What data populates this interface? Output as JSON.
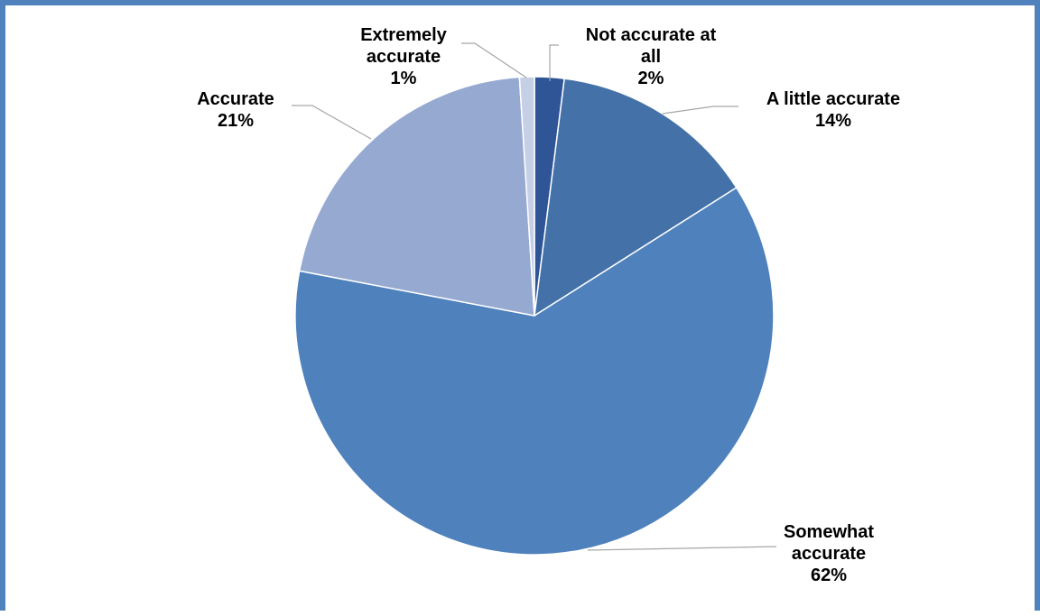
{
  "chart_data": {
    "type": "pie",
    "categories": [
      "Not accurate at all",
      "A little accurate",
      "Somewhat accurate",
      "Accurate",
      "Extremely accurate"
    ],
    "values": [
      2,
      14,
      62,
      21,
      1
    ],
    "value_labels": [
      "2%",
      "14%",
      "62%",
      "21%",
      "1%"
    ],
    "colors": [
      "#2f5597",
      "#4472a8",
      "#4f81bd",
      "#95a9d1",
      "#c5d0e6"
    ],
    "start_at_top": true,
    "direction": "clockwise",
    "legend": "none"
  }
}
